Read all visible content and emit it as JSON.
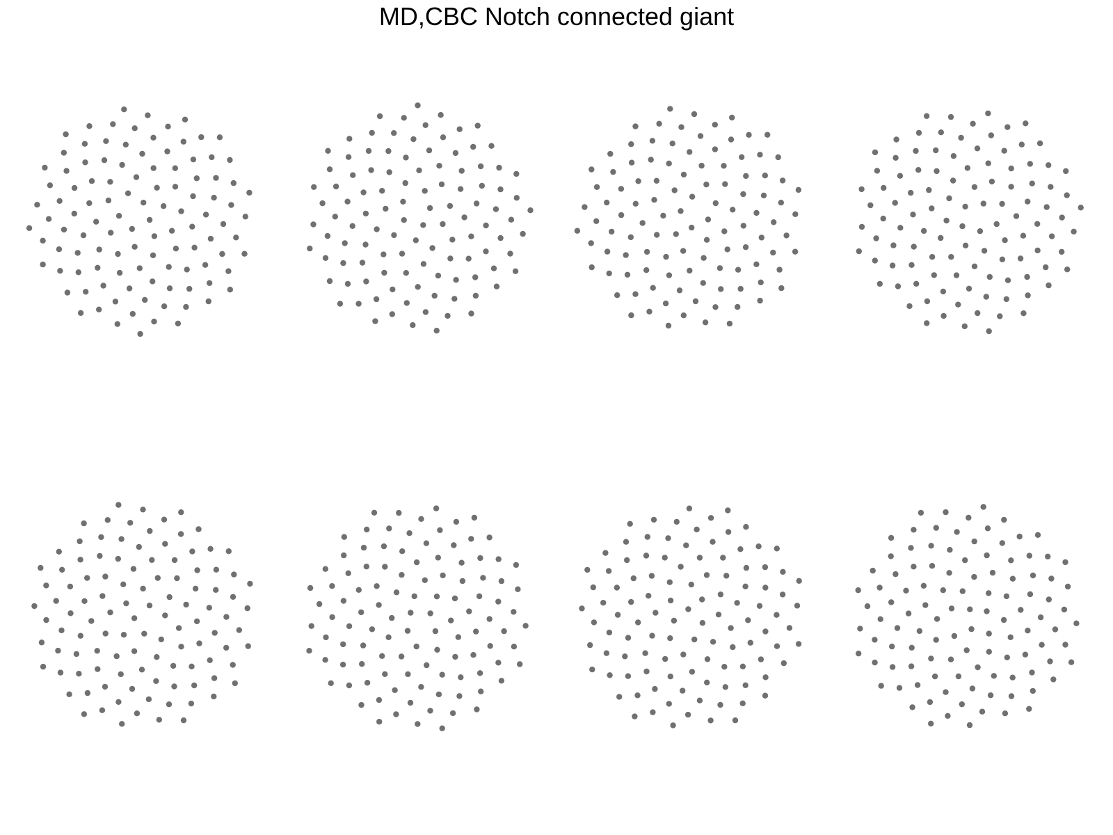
{
  "figure": {
    "title": "MD,CBC Notch connected giant"
  },
  "style": {
    "node_color": "#707070",
    "background": "#ffffff"
  },
  "panels": [
    {
      "name": "network-panel-1",
      "nodes": 110
    },
    {
      "name": "network-panel-2",
      "nodes": 110
    },
    {
      "name": "network-panel-3",
      "nodes": 110
    },
    {
      "name": "network-panel-4",
      "nodes": 110
    },
    {
      "name": "network-panel-5",
      "nodes": 110
    },
    {
      "name": "network-panel-6",
      "nodes": 110
    },
    {
      "name": "network-panel-7",
      "nodes": 110
    },
    {
      "name": "network-panel-8",
      "nodes": 110
    }
  ]
}
